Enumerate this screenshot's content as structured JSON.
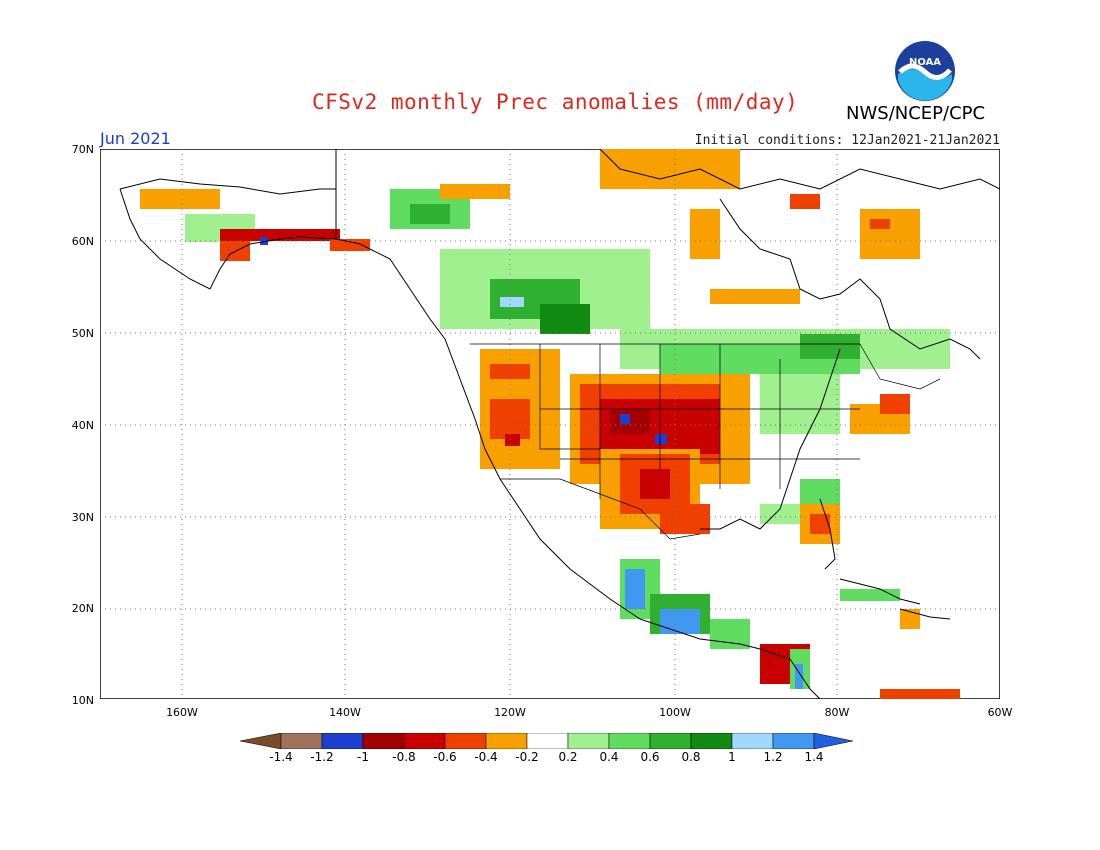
{
  "title": "CFSv2 monthly Prec anomalies (mm/day)",
  "month": "Jun 2021",
  "initial_conditions": "Initial conditions: 12Jan2021-21Jan2021",
  "agency": "NWS/NCEP/CPC",
  "logo_text": "NOAA",
  "lat_labels": [
    "70N",
    "60N",
    "50N",
    "40N",
    "30N",
    "20N",
    "10N"
  ],
  "lon_labels": [
    "160W",
    "140W",
    "120W",
    "100W",
    "80W",
    "60W"
  ],
  "colorbar": {
    "labels": [
      "-1.4",
      "-1.2",
      "-1",
      "-0.8",
      "-0.6",
      "-0.4",
      "-0.2",
      "0.2",
      "0.4",
      "0.6",
      "0.8",
      "1",
      "1.2",
      "1.4"
    ],
    "colors": [
      "#7a4b2a",
      "#a0725c",
      "#1c3fd0",
      "#a50000",
      "#c80000",
      "#f04000",
      "#f8a000",
      "#ffffff",
      "#a0f090",
      "#60dc60",
      "#30b030",
      "#108a10",
      "#a0d8ff",
      "#4098f0",
      "#2060e0"
    ]
  }
}
